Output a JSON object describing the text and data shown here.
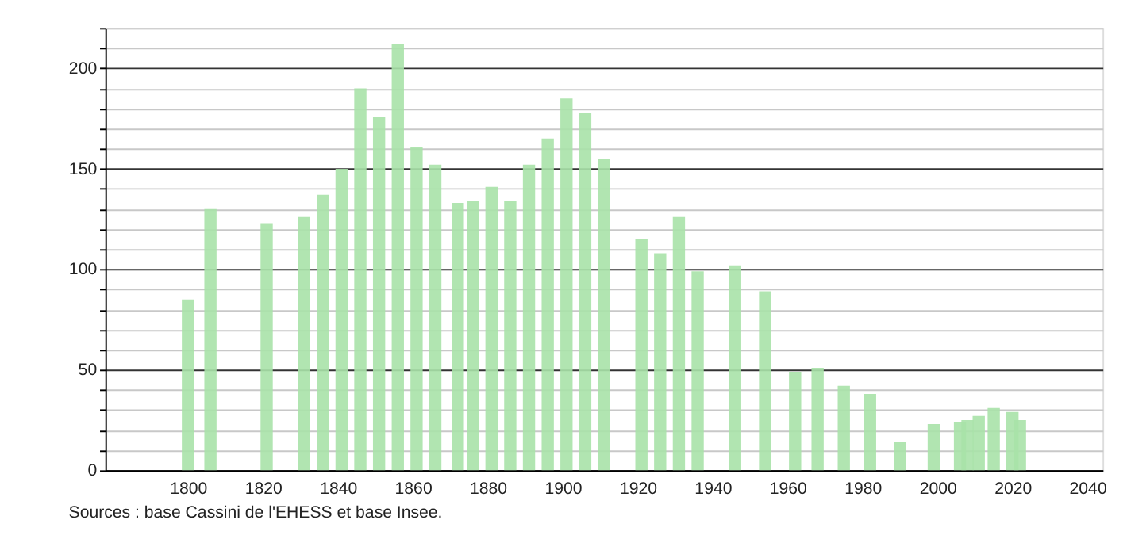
{
  "chart_data": {
    "type": "bar",
    "color": "#a8e2a8",
    "x": [
      1800,
      1806,
      1821,
      1831,
      1836,
      1841,
      1846,
      1851,
      1856,
      1861,
      1866,
      1872,
      1876,
      1881,
      1886,
      1891,
      1896,
      1901,
      1906,
      1911,
      1921,
      1926,
      1931,
      1936,
      1946,
      1954,
      1962,
      1968,
      1975,
      1982,
      1990,
      1999,
      2006,
      2008,
      2011,
      2015,
      2020,
      2022
    ],
    "values": [
      85,
      130,
      123,
      126,
      137,
      150,
      190,
      176,
      212,
      161,
      152,
      133,
      134,
      141,
      134,
      152,
      165,
      185,
      178,
      155,
      115,
      108,
      126,
      99,
      102,
      89,
      49,
      51,
      42,
      38,
      14,
      23,
      24,
      25,
      27,
      31,
      29,
      25
    ],
    "xlim": [
      1780,
      2042
    ],
    "xticks": [
      1800,
      1820,
      1840,
      1860,
      1880,
      1900,
      1920,
      1940,
      1960,
      1980,
      2000,
      2020,
      2040
    ],
    "ylim": [
      0,
      220
    ],
    "yticks": [
      0,
      {
        "value": 10,
        "label": null
      },
      {
        "value": 20,
        "label": null
      },
      {
        "value": 30,
        "label": null
      },
      {
        "value": 40,
        "label": null
      },
      50,
      {
        "value": 60,
        "label": null
      },
      {
        "value": 70,
        "label": null
      },
      {
        "value": 80,
        "label": null
      },
      {
        "value": 90,
        "label": null
      },
      100,
      {
        "value": 110,
        "label": null
      },
      {
        "value": 120,
        "label": null
      },
      {
        "value": 130,
        "label": null
      },
      {
        "value": 140,
        "label": null
      },
      150,
      {
        "value": 160,
        "label": null
      },
      {
        "value": 170,
        "label": null
      },
      {
        "value": 180,
        "label": null
      },
      {
        "value": 190,
        "label": null
      },
      200,
      {
        "value": 210,
        "label": null
      },
      {
        "value": 220,
        "label": null
      }
    ],
    "grid": "y",
    "annotations": [
      "Sources : base Cassini de l'EHESS et base Insee."
    ]
  }
}
